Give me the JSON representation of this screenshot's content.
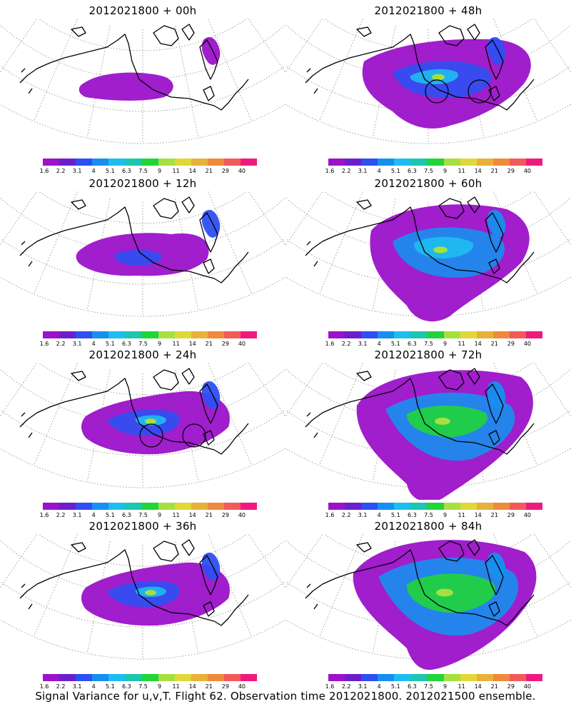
{
  "footer": "Signal Variance for u,v,T. Flight 62. Observation time 2012021800. 2012021500 ensemble.",
  "colorbar": {
    "colors": [
      "#9b12c9",
      "#6b1fcc",
      "#2e4ff2",
      "#168fef",
      "#1ebdf0",
      "#1cc6b0",
      "#21d43a",
      "#a6e040",
      "#e0d838",
      "#e8b13a",
      "#ef8a3d",
      "#f25a5a",
      "#f01a7e"
    ],
    "labels": [
      "1.6",
      "2.2",
      "3.1",
      "4",
      "5.1",
      "6.3",
      "7.5",
      "9",
      "11",
      "14",
      "21",
      "29",
      "40"
    ]
  },
  "panels": [
    {
      "id": "p00",
      "title": "2012021800 + 00h",
      "level": 0,
      "circles": false
    },
    {
      "id": "p48",
      "title": "2012021800 + 48h",
      "level": 3,
      "circles": true
    },
    {
      "id": "p12",
      "title": "2012021800 + 12h",
      "level": 1,
      "circles": false
    },
    {
      "id": "p60",
      "title": "2012021800 + 60h",
      "level": 4,
      "circles": false
    },
    {
      "id": "p24",
      "title": "2012021800 + 24h",
      "level": 2,
      "circles": true
    },
    {
      "id": "p72",
      "title": "2012021800 + 72h",
      "level": 5,
      "circles": false
    },
    {
      "id": "p36",
      "title": "2012021800 + 36h",
      "level": 2,
      "circles": false
    },
    {
      "id": "p84",
      "title": "2012021800 + 84h",
      "level": 6,
      "circles": false
    }
  ]
}
